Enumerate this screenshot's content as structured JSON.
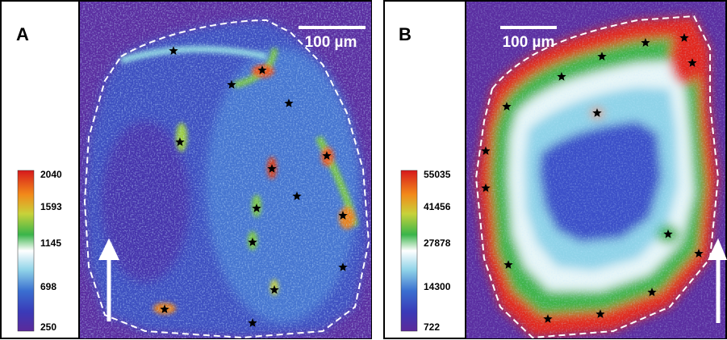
{
  "panels": [
    {
      "label": "A",
      "scale_bar": "100 µm",
      "colorbar_ticks": [
        "2040",
        "1593",
        "1145",
        "698",
        "250"
      ]
    },
    {
      "label": "B",
      "scale_bar": "100 µm",
      "colorbar_ticks": [
        "55035",
        "41456",
        "27878",
        "14300",
        "722"
      ]
    }
  ]
}
